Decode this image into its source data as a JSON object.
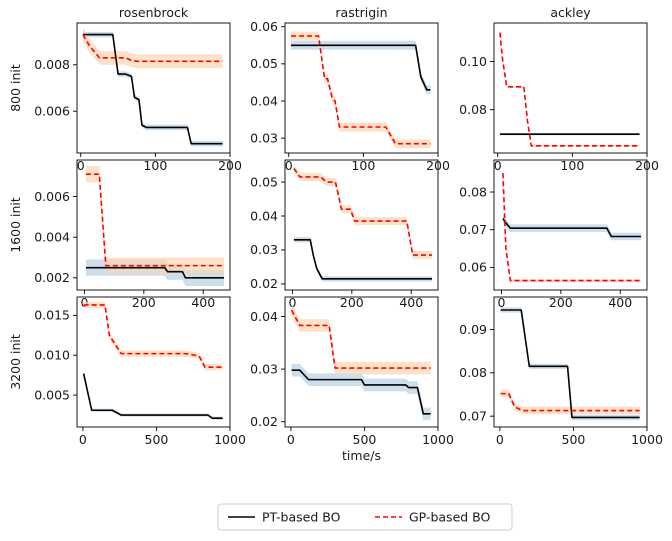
{
  "figure": {
    "colors": {
      "pt_line": "#000000",
      "pt_band": "#bcd3e6",
      "gp_line": "#ff0000",
      "gp_band": "#fbd5b2",
      "axis": "#000000"
    },
    "legend": {
      "placement": "bottom-center",
      "entries": [
        {
          "label": "PT-based BO",
          "style": "solid",
          "color": "#000000"
        },
        {
          "label": "GP-based BO",
          "style": "dashed",
          "color": "#ff0000"
        }
      ]
    }
  },
  "chart_data": [
    {
      "type": "line",
      "row": 0,
      "col": 0,
      "title": "rosenbrock",
      "ylabel": "800 init",
      "xlabel": "",
      "xlim": [
        -5,
        200
      ],
      "ylim": [
        0.0042,
        0.0098
      ],
      "xticks": [
        0,
        100,
        200
      ],
      "xtick_labels": [
        "0",
        "100",
        "200"
      ],
      "yticks": [
        0.006,
        0.008
      ],
      "ytick_labels": [
        "0.006",
        "0.008"
      ],
      "series": [
        {
          "name": "PT-based BO",
          "style": "solid",
          "band": 0.00012,
          "points": [
            [
              3,
              0.0093
            ],
            [
              43,
              0.0093
            ],
            [
              50,
              0.0076
            ],
            [
              60,
              0.0076
            ],
            [
              68,
              0.0075
            ],
            [
              72,
              0.0066
            ],
            [
              78,
              0.0065
            ],
            [
              82,
              0.0054
            ],
            [
              88,
              0.0053
            ],
            [
              143,
              0.0053
            ],
            [
              148,
              0.0046
            ],
            [
              190,
              0.0046
            ]
          ]
        },
        {
          "name": "GP-based BO",
          "style": "dashed",
          "band": 0.0003,
          "points": [
            [
              3,
              0.0093
            ],
            [
              12,
              0.0088
            ],
            [
              20,
              0.0085
            ],
            [
              25,
              0.0083
            ],
            [
              60,
              0.0083
            ],
            [
              67,
              0.0082
            ],
            [
              75,
              0.00815
            ],
            [
              190,
              0.00815
            ]
          ]
        }
      ]
    },
    {
      "type": "line",
      "row": 0,
      "col": 1,
      "title": "rastrigin",
      "ylabel": "",
      "xlabel": "",
      "xlim": [
        -5,
        200
      ],
      "ylim": [
        0.026,
        0.061
      ],
      "xticks": [
        0,
        100,
        200
      ],
      "xtick_labels": [
        "0",
        "100",
        "200"
      ],
      "yticks": [
        0.03,
        0.04,
        0.05,
        0.06
      ],
      "ytick_labels": [
        "0.03",
        "0.04",
        "0.05",
        "0.06"
      ],
      "series": [
        {
          "name": "PT-based BO",
          "style": "solid",
          "band": 0.0012,
          "points": [
            [
              3,
              0.055
            ],
            [
              170,
              0.055
            ],
            [
              177,
              0.0465
            ],
            [
              185,
              0.043
            ],
            [
              190,
              0.043
            ]
          ]
        },
        {
          "name": "GP-based BO",
          "style": "dashed",
          "band": 0.0012,
          "points": [
            [
              3,
              0.0575
            ],
            [
              40,
              0.0575
            ],
            [
              48,
              0.046
            ],
            [
              52,
              0.046
            ],
            [
              58,
              0.041
            ],
            [
              62,
              0.04
            ],
            [
              68,
              0.033
            ],
            [
              130,
              0.033
            ],
            [
              143,
              0.0285
            ],
            [
              190,
              0.0285
            ]
          ]
        }
      ]
    },
    {
      "type": "line",
      "row": 0,
      "col": 2,
      "title": "ackley",
      "ylabel": "",
      "xlabel": "",
      "xlim": [
        -5,
        200
      ],
      "ylim": [
        0.062,
        0.116
      ],
      "xticks": [
        0,
        100,
        200
      ],
      "xtick_labels": [
        "0",
        "100",
        "200"
      ],
      "yticks": [
        0.08,
        0.1
      ],
      "ytick_labels": [
        "0.08",
        "0.10"
      ],
      "series": [
        {
          "name": "PT-based BO",
          "style": "solid",
          "band": 0.0005,
          "points": [
            [
              3,
              0.0698
            ],
            [
              190,
              0.0698
            ]
          ]
        },
        {
          "name": "GP-based BO",
          "style": "dashed",
          "band": 0.0005,
          "points": [
            [
              3,
              0.112
            ],
            [
              6,
              0.102
            ],
            [
              12,
              0.0895
            ],
            [
              35,
              0.0895
            ],
            [
              40,
              0.075
            ],
            [
              45,
              0.065
            ],
            [
              190,
              0.065
            ]
          ]
        }
      ]
    },
    {
      "type": "line",
      "row": 1,
      "col": 0,
      "title": "",
      "ylabel": "1600 init",
      "xlabel": "",
      "xlim": [
        -25,
        490
      ],
      "ylim": [
        0.0014,
        0.0078
      ],
      "xticks": [
        0,
        200,
        400
      ],
      "xtick_labels": [
        "0",
        "200",
        "400"
      ],
      "yticks": [
        0.002,
        0.004,
        0.006
      ],
      "ytick_labels": [
        "0.002",
        "0.004",
        "0.006"
      ],
      "series": [
        {
          "name": "PT-based BO",
          "style": "solid",
          "band": 0.0004,
          "points": [
            [
              5,
              0.0025
            ],
            [
              270,
              0.0025
            ],
            [
              280,
              0.0023
            ],
            [
              330,
              0.0023
            ],
            [
              340,
              0.002
            ],
            [
              470,
              0.002
            ]
          ]
        },
        {
          "name": "GP-based BO",
          "style": "dashed",
          "band": 0.0004,
          "points": [
            [
              5,
              0.0071
            ],
            [
              50,
              0.0071
            ],
            [
              72,
              0.0026
            ],
            [
              470,
              0.0026
            ]
          ]
        }
      ]
    },
    {
      "type": "line",
      "row": 1,
      "col": 1,
      "title": "",
      "ylabel": "",
      "xlabel": "",
      "xlim": [
        -25,
        490
      ],
      "ylim": [
        0.0182,
        0.0565
      ],
      "xticks": [
        0,
        200,
        400
      ],
      "xtick_labels": [
        "0",
        "200",
        "400"
      ],
      "yticks": [
        0.02,
        0.03,
        0.04,
        0.05
      ],
      "ytick_labels": [
        "0.02",
        "0.03",
        "0.04",
        "0.05"
      ],
      "series": [
        {
          "name": "PT-based BO",
          "style": "solid",
          "band": 0.0008,
          "points": [
            [
              5,
              0.033
            ],
            [
              60,
              0.033
            ],
            [
              70,
              0.0285
            ],
            [
              82,
              0.0245
            ],
            [
              100,
              0.0215
            ],
            [
              470,
              0.0215
            ]
          ]
        },
        {
          "name": "GP-based BO",
          "style": "dashed",
          "band": 0.0012,
          "points": [
            [
              5,
              0.054
            ],
            [
              25,
              0.0515
            ],
            [
              95,
              0.0515
            ],
            [
              115,
              0.05
            ],
            [
              145,
              0.05
            ],
            [
              165,
              0.042
            ],
            [
              195,
              0.042
            ],
            [
              210,
              0.0385
            ],
            [
              385,
              0.0385
            ],
            [
              405,
              0.0285
            ],
            [
              470,
              0.0285
            ]
          ]
        }
      ]
    },
    {
      "type": "line",
      "row": 1,
      "col": 2,
      "title": "",
      "ylabel": "",
      "xlabel": "",
      "xlim": [
        -25,
        490
      ],
      "ylim": [
        0.054,
        0.0885
      ],
      "xticks": [
        0,
        200,
        400
      ],
      "xtick_labels": [
        "0",
        "200",
        "400"
      ],
      "yticks": [
        0.06,
        0.07,
        0.08
      ],
      "ytick_labels": [
        "0.06",
        "0.07",
        "0.08"
      ],
      "series": [
        {
          "name": "PT-based BO",
          "style": "solid",
          "band": 0.001,
          "points": [
            [
              5,
              0.073
            ],
            [
              15,
              0.0718
            ],
            [
              30,
              0.0704
            ],
            [
              355,
              0.0704
            ],
            [
              370,
              0.0682
            ],
            [
              470,
              0.0682
            ]
          ]
        },
        {
          "name": "GP-based BO",
          "style": "dashed",
          "band": 0.0004,
          "points": [
            [
              5,
              0.085
            ],
            [
              15,
              0.065
            ],
            [
              30,
              0.0565
            ],
            [
              470,
              0.0565
            ]
          ]
        }
      ]
    },
    {
      "type": "line",
      "row": 2,
      "col": 0,
      "title": "",
      "ylabel": "3200 init",
      "xlabel": "",
      "xlim": [
        -40,
        1000
      ],
      "ylim": [
        0.001,
        0.0173
      ],
      "xticks": [
        0,
        500,
        1000
      ],
      "xtick_labels": [
        "0",
        "500",
        "1000"
      ],
      "yticks": [
        0.005,
        0.01,
        0.015
      ],
      "ytick_labels": [
        "0.005",
        "0.010",
        "0.015"
      ],
      "series": [
        {
          "name": "PT-based BO",
          "style": "solid",
          "band": 0.0002,
          "points": [
            [
              5,
              0.0077
            ],
            [
              60,
              0.0031
            ],
            [
              200,
              0.0031
            ],
            [
              260,
              0.0025
            ],
            [
              850,
              0.0025
            ],
            [
              880,
              0.0021
            ],
            [
              950,
              0.0021
            ]
          ]
        },
        {
          "name": "GP-based BO",
          "style": "dashed",
          "band": 0.0004,
          "points": [
            [
              5,
              0.0163
            ],
            [
              150,
              0.0163
            ],
            [
              180,
              0.0125
            ],
            [
              260,
              0.0102
            ],
            [
              700,
              0.0102
            ],
            [
              790,
              0.0099
            ],
            [
              830,
              0.0085
            ],
            [
              950,
              0.0085
            ]
          ]
        }
      ]
    },
    {
      "type": "line",
      "row": 2,
      "col": 1,
      "title": "",
      "ylabel": "",
      "xlabel": "time/s",
      "xlim": [
        -40,
        1000
      ],
      "ylim": [
        0.019,
        0.0437
      ],
      "xticks": [
        0,
        500,
        1000
      ],
      "xtick_labels": [
        "0",
        "500",
        "1000"
      ],
      "yticks": [
        0.02,
        0.03,
        0.04
      ],
      "ytick_labels": [
        "0.02",
        "0.03",
        "0.04"
      ],
      "series": [
        {
          "name": "PT-based BO",
          "style": "solid",
          "band": 0.0012,
          "points": [
            [
              5,
              0.0298
            ],
            [
              60,
              0.0298
            ],
            [
              120,
              0.028
            ],
            [
              480,
              0.028
            ],
            [
              500,
              0.027
            ],
            [
              780,
              0.027
            ],
            [
              800,
              0.0265
            ],
            [
              860,
              0.0265
            ],
            [
              900,
              0.0215
            ],
            [
              950,
              0.0215
            ]
          ]
        },
        {
          "name": "GP-based BO",
          "style": "dashed",
          "band": 0.0012,
          "points": [
            [
              5,
              0.0412
            ],
            [
              60,
              0.0383
            ],
            [
              260,
              0.0383
            ],
            [
              300,
              0.0302
            ],
            [
              950,
              0.0302
            ]
          ]
        }
      ]
    },
    {
      "type": "line",
      "row": 2,
      "col": 2,
      "title": "",
      "ylabel": "",
      "xlabel": "",
      "xlim": [
        -40,
        1000
      ],
      "ylim": [
        0.0675,
        0.0975
      ],
      "xticks": [
        0,
        500,
        1000
      ],
      "xtick_labels": [
        "0",
        "500",
        "1000"
      ],
      "yticks": [
        0.07,
        0.08,
        0.09
      ],
      "ytick_labels": [
        "0.07",
        "0.08",
        "0.09"
      ],
      "series": [
        {
          "name": "PT-based BO",
          "style": "solid",
          "band": 0.0006,
          "points": [
            [
              5,
              0.0945
            ],
            [
              145,
              0.0945
            ],
            [
              200,
              0.0815
            ],
            [
              460,
              0.0815
            ],
            [
              490,
              0.0697
            ],
            [
              950,
              0.0697
            ]
          ]
        },
        {
          "name": "GP-based BO",
          "style": "dashed",
          "band": 0.0009,
          "points": [
            [
              5,
              0.0752
            ],
            [
              60,
              0.0752
            ],
            [
              100,
              0.0722
            ],
            [
              150,
              0.0713
            ],
            [
              950,
              0.0713
            ]
          ]
        }
      ]
    }
  ]
}
